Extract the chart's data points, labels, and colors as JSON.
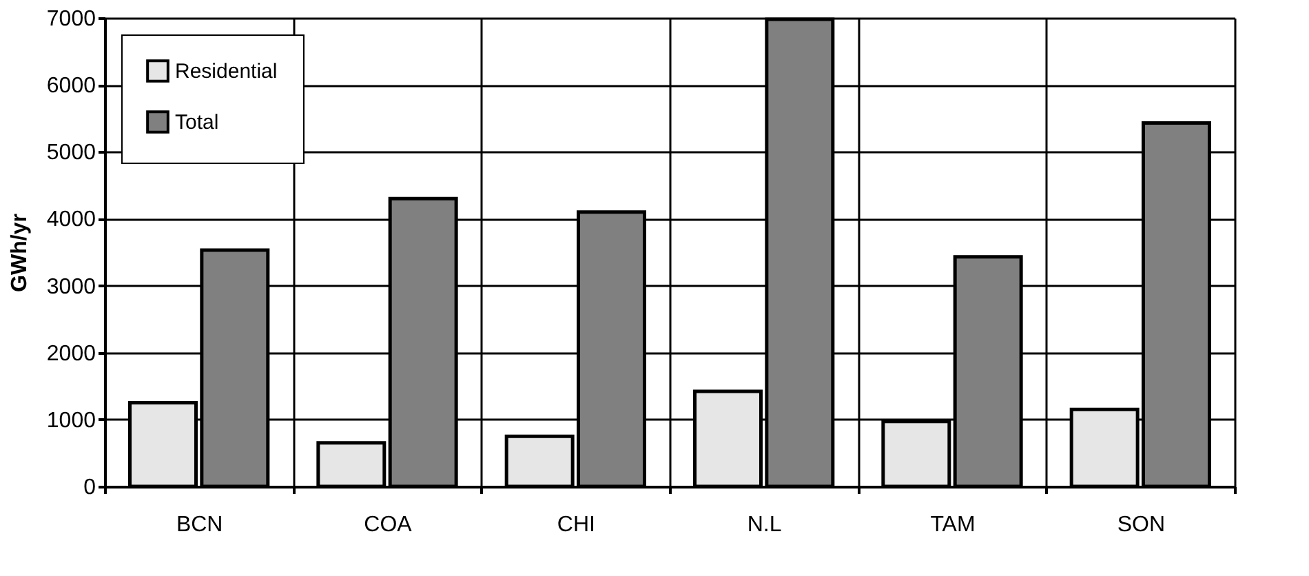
{
  "chart_data": {
    "type": "bar",
    "ylabel": "GWh/yr",
    "categories": [
      "BCN",
      "COA",
      "CHI",
      "N.L",
      "TAM",
      "SON"
    ],
    "series": [
      {
        "name": "Residential",
        "color": "#e6e6e6",
        "values": [
          1250,
          650,
          750,
          1420,
          970,
          1150
        ]
      },
      {
        "name": "Total",
        "color": "#808080",
        "values": [
          3530,
          4300,
          4100,
          6980,
          3430,
          5430
        ]
      }
    ],
    "ylim": [
      0,
      7000
    ],
    "yticks": [
      0,
      1000,
      2000,
      3000,
      4000,
      5000,
      6000,
      7000
    ],
    "grid": true,
    "legend": "top left"
  }
}
